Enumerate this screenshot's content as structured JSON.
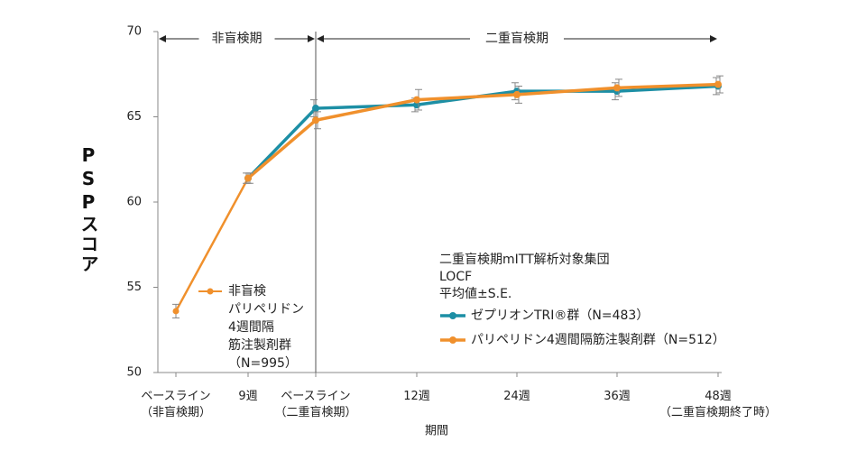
{
  "chart_data": {
    "type": "line",
    "ylabel": "PSPスコア",
    "xlabel": "期間",
    "categories": [
      [
        "ベースライン",
        "（非盲検期）"
      ],
      [
        "9週"
      ],
      [
        "ベースライン",
        "（二重盲検期）"
      ],
      [
        "12週"
      ],
      [
        "24週"
      ],
      [
        "36週"
      ],
      [
        "48週",
        "（二重盲検期終了時）"
      ]
    ],
    "ylim": [
      50,
      70
    ],
    "yticks": [
      50,
      55,
      60,
      65,
      70
    ],
    "phases": [
      "非盲検期",
      "二重盲検期"
    ],
    "annotations": [
      "二重盲検期mITT解析対象集団",
      "LOCF",
      "平均値±S.E."
    ],
    "series": [
      {
        "name": [
          "非盲検",
          "パリペリドン",
          "4週間隔",
          "筋注製剤群",
          "（N=995）"
        ],
        "color": "#f0902c",
        "values": [
          53.6,
          61.4,
          null,
          null,
          null,
          null,
          null
        ],
        "errors": [
          0.4,
          0.3,
          null,
          null,
          null,
          null,
          null
        ]
      },
      {
        "name": "ゼプリオンTRI®群（N=483）",
        "color": "#1d8fa5",
        "values": [
          null,
          61.4,
          65.5,
          65.7,
          66.5,
          66.5,
          66.8
        ],
        "errors": [
          null,
          0.3,
          0.5,
          0.4,
          0.5,
          0.5,
          0.5
        ]
      },
      {
        "name": "パリペリドン4週間隔筋注製剤群（N=512）",
        "color": "#f0902c",
        "values": [
          null,
          61.4,
          64.8,
          66.0,
          66.3,
          66.7,
          66.9
        ],
        "errors": [
          null,
          0.3,
          0.5,
          0.6,
          0.5,
          0.5,
          0.5
        ]
      }
    ]
  }
}
